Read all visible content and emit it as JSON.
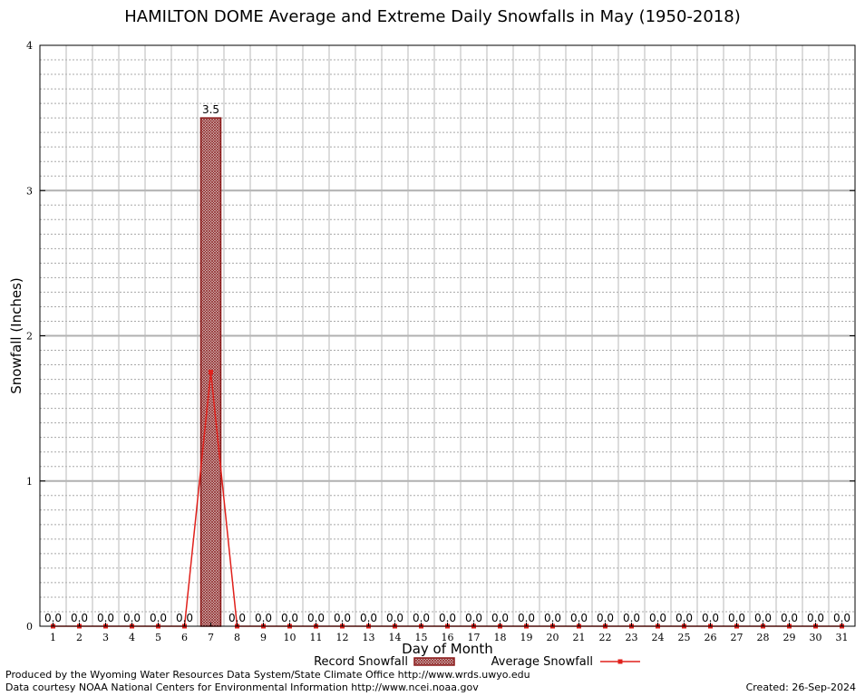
{
  "chart_data": {
    "type": "bar",
    "title": "HAMILTON DOME Average and Extreme Daily Snowfalls in May (1950-2018)",
    "xlabel": "Day of Month",
    "ylabel": "Snowfall (Inches)",
    "ylim": [
      0,
      4
    ],
    "yticks": [
      "0",
      "1",
      "2",
      "3",
      "4"
    ],
    "categories": [
      "1",
      "2",
      "3",
      "4",
      "5",
      "6",
      "7",
      "8",
      "9",
      "10",
      "11",
      "12",
      "13",
      "14",
      "15",
      "16",
      "17",
      "18",
      "19",
      "20",
      "21",
      "22",
      "23",
      "24",
      "25",
      "26",
      "27",
      "28",
      "29",
      "30",
      "31"
    ],
    "grid": true,
    "legend_position": "bottom",
    "series": [
      {
        "name": "Record Snowfall",
        "type": "bar",
        "color": "#8b1a1a",
        "values": [
          0,
          0,
          0,
          0,
          0,
          0,
          3.5,
          0,
          0,
          0,
          0,
          0,
          0,
          0,
          0,
          0,
          0,
          0,
          0,
          0,
          0,
          0,
          0,
          0,
          0,
          0,
          0,
          0,
          0,
          0,
          0
        ],
        "labels": [
          "0.0",
          "0.0",
          "0.0",
          "0.0",
          "0.0",
          "0.0",
          "3.5",
          "0.0",
          "0.0",
          "0.0",
          "0.0",
          "0.0",
          "0.0",
          "0.0",
          "0.0",
          "0.0",
          "0.0",
          "0.0",
          "0.0",
          "0.0",
          "0.0",
          "0.0",
          "0.0",
          "0.0",
          "0.0",
          "0.0",
          "0.0",
          "0.0",
          "0.0",
          "0.0",
          "0.0"
        ]
      },
      {
        "name": "Average Snowfall",
        "type": "line",
        "color": "#e0201b",
        "values": [
          0,
          0,
          0,
          0,
          0,
          0,
          1.75,
          0,
          0,
          0,
          0,
          0,
          0,
          0,
          0,
          0,
          0,
          0,
          0,
          0,
          0,
          0,
          0,
          0,
          0,
          0,
          0,
          0,
          0,
          0,
          0
        ]
      }
    ]
  },
  "footer": {
    "line1": "Produced by the Wyoming Water Resources Data System/State Climate Office http://www.wrds.uwyo.edu",
    "line2": "Data courtesy NOAA National Centers for Environmental Information http://www.ncei.noaa.gov",
    "created": "Created:  26-Sep-2024"
  }
}
